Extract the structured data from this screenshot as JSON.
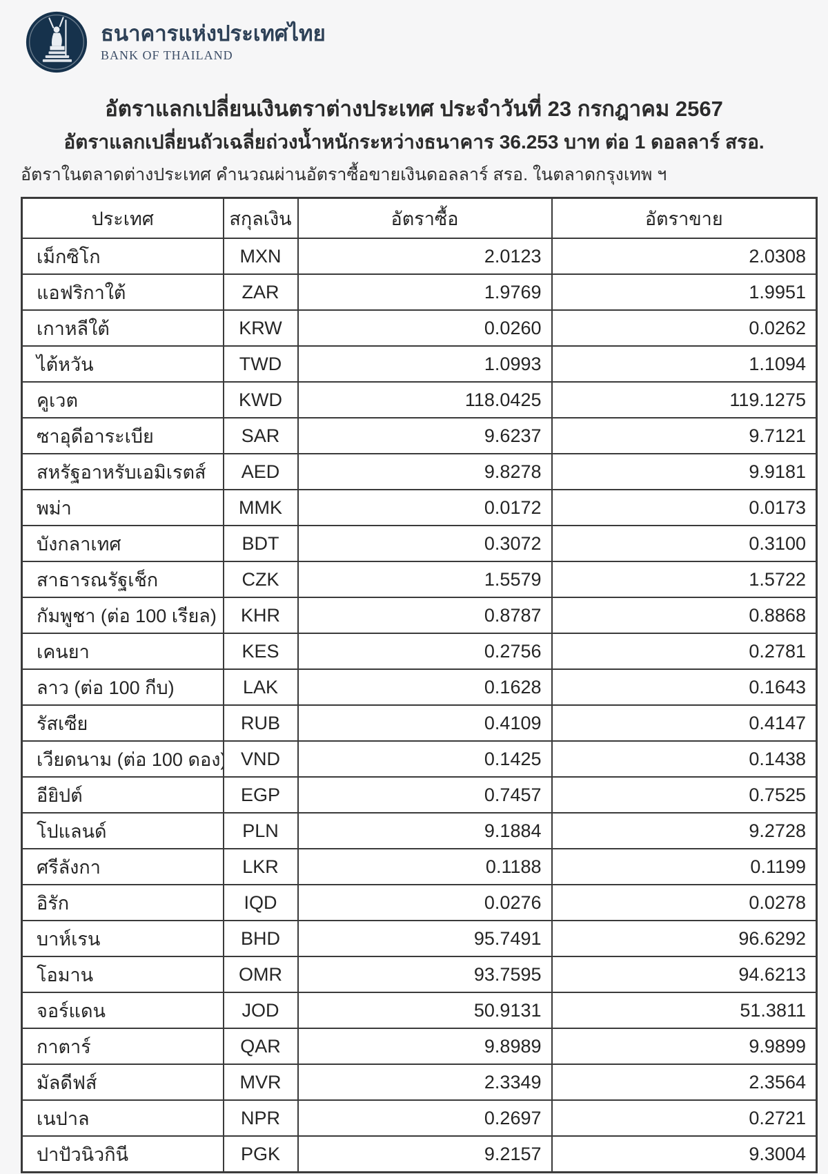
{
  "brand": {
    "name_th": "ธนาคารแห่งประเทศไทย",
    "name_en": "BANK OF THAILAND",
    "logo_icon": "bank-of-thailand-emblem",
    "logo_color": "#16324c"
  },
  "header": {
    "title": "อัตราแลกเปลี่ยนเงินตราต่างประเทศ ประจำวันที่ 23 กรกฎาคม 2567",
    "subtitle": "อัตราแลกเปลี่ยนถัวเฉลี่ยถ่วงน้ำหนักระหว่างธนาคาร 36.253 บาท ต่อ 1 ดอลลาร์ สรอ.",
    "note": "อัตราในตลาดต่างประเทศ คำนวณผ่านอัตราซื้อขายเงินดอลลาร์ สรอ. ในตลาดกรุงเทพ ฯ",
    "reference_rate": "36.253",
    "date_th": "23 กรกฎาคม 2567"
  },
  "table": {
    "columns": [
      "ประเทศ",
      "สกุลเงิน",
      "อัตราซื้อ",
      "อัตราขาย"
    ],
    "rows": [
      {
        "country": "เม็กซิโก",
        "currency": "MXN",
        "buy": "2.0123",
        "sell": "2.0308"
      },
      {
        "country": "แอฟริกาใต้",
        "currency": "ZAR",
        "buy": "1.9769",
        "sell": "1.9951"
      },
      {
        "country": "เกาหลีใต้",
        "currency": "KRW",
        "buy": "0.0260",
        "sell": "0.0262"
      },
      {
        "country": "ไต้หวัน",
        "currency": "TWD",
        "buy": "1.0993",
        "sell": "1.1094"
      },
      {
        "country": "คูเวต",
        "currency": "KWD",
        "buy": "118.0425",
        "sell": "119.1275"
      },
      {
        "country": "ซาอุดีอาระเบีย",
        "currency": "SAR",
        "buy": "9.6237",
        "sell": "9.7121"
      },
      {
        "country": "สหรัฐอาหรับเอมิเรตส์",
        "currency": "AED",
        "buy": "9.8278",
        "sell": "9.9181"
      },
      {
        "country": "พม่า",
        "currency": "MMK",
        "buy": "0.0172",
        "sell": "0.0173"
      },
      {
        "country": "บังกลาเทศ",
        "currency": "BDT",
        "buy": "0.3072",
        "sell": "0.3100"
      },
      {
        "country": "สาธารณรัฐเช็ก",
        "currency": "CZK",
        "buy": "1.5579",
        "sell": "1.5722"
      },
      {
        "country": "กัมพูชา (ต่อ 100 เรียล)",
        "currency": "KHR",
        "buy": "0.8787",
        "sell": "0.8868"
      },
      {
        "country": "เคนยา",
        "currency": "KES",
        "buy": "0.2756",
        "sell": "0.2781"
      },
      {
        "country": "ลาว (ต่อ 100 กีบ)",
        "currency": "LAK",
        "buy": "0.1628",
        "sell": "0.1643"
      },
      {
        "country": "รัสเซีย",
        "currency": "RUB",
        "buy": "0.4109",
        "sell": "0.4147"
      },
      {
        "country": "เวียดนาม (ต่อ 100 ดอง)",
        "currency": "VND",
        "buy": "0.1425",
        "sell": "0.1438"
      },
      {
        "country": "อียิปต์",
        "currency": "EGP",
        "buy": "0.7457",
        "sell": "0.7525"
      },
      {
        "country": "โปแลนด์",
        "currency": "PLN",
        "buy": "9.1884",
        "sell": "9.2728"
      },
      {
        "country": "ศรีลังกา",
        "currency": "LKR",
        "buy": "0.1188",
        "sell": "0.1199"
      },
      {
        "country": "อิรัก",
        "currency": "IQD",
        "buy": "0.0276",
        "sell": "0.0278"
      },
      {
        "country": "บาห์เรน",
        "currency": "BHD",
        "buy": "95.7491",
        "sell": "96.6292"
      },
      {
        "country": "โอมาน",
        "currency": "OMR",
        "buy": "93.7595",
        "sell": "94.6213"
      },
      {
        "country": "จอร์แดน",
        "currency": "JOD",
        "buy": "50.9131",
        "sell": "51.3811"
      },
      {
        "country": "กาตาร์",
        "currency": "QAR",
        "buy": "9.8989",
        "sell": "9.9899"
      },
      {
        "country": "มัลดีฟส์",
        "currency": "MVR",
        "buy": "2.3349",
        "sell": "2.3564"
      },
      {
        "country": "เนปาล",
        "currency": "NPR",
        "buy": "0.2697",
        "sell": "0.2721"
      },
      {
        "country": "ปาปัวนิวกินี",
        "currency": "PGK",
        "buy": "9.2157",
        "sell": "9.3004"
      }
    ]
  },
  "colors": {
    "page_bg": "#f6f6f7",
    "cell_bg": "#ffffff",
    "border": "#3a3a3a",
    "text": "#2b2b2b",
    "logo_navy": "#16324c"
  }
}
